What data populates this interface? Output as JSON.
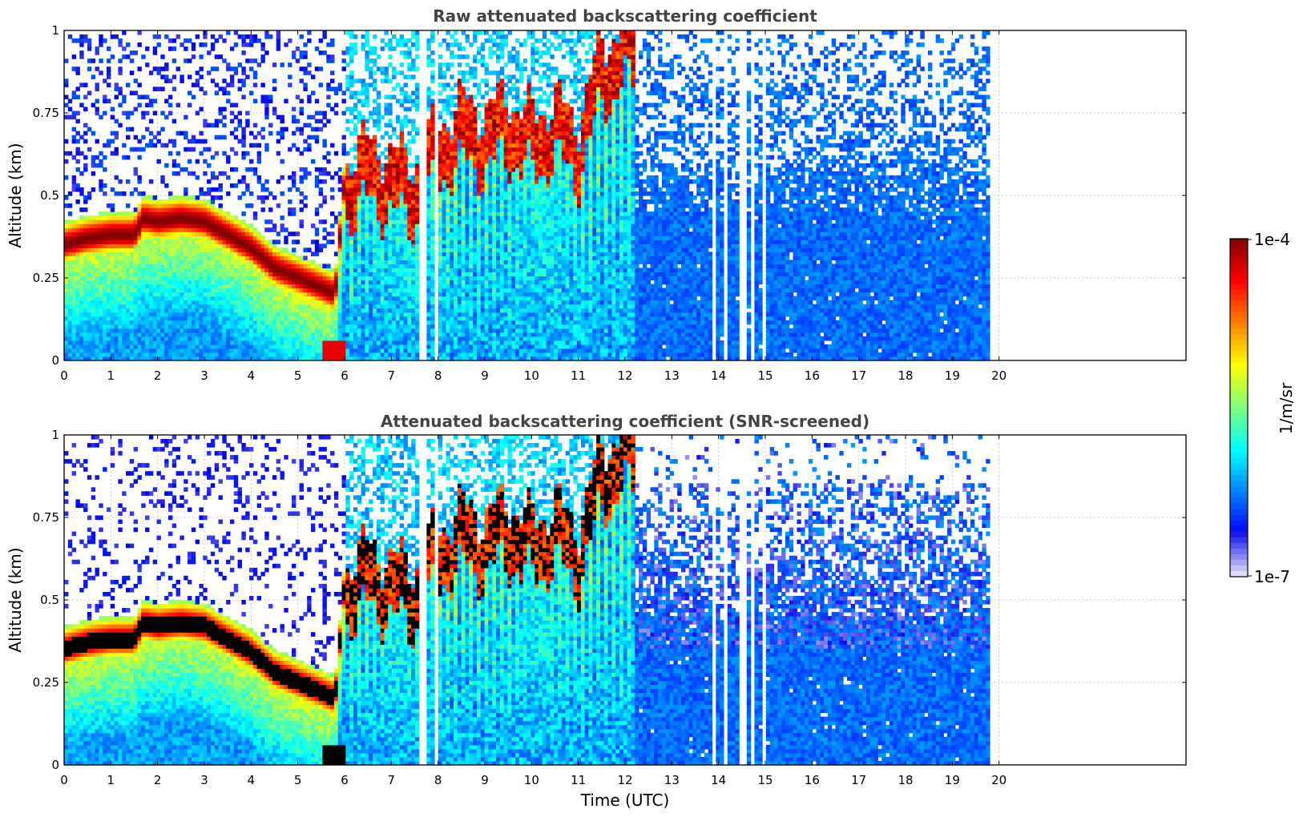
{
  "chart_data": [
    {
      "type": "heatmap",
      "title": "Raw attenuated backscattering coefficient",
      "xlabel": "",
      "ylabel": "Altitude (km)",
      "xlim": [
        0,
        24
      ],
      "ylim": [
        0,
        1
      ],
      "xticks": [
        "0",
        "1",
        "2",
        "3",
        "4",
        "5",
        "6",
        "7",
        "8",
        "9",
        "10",
        "11",
        "12",
        "13",
        "14",
        "15",
        "16",
        "17",
        "18",
        "19",
        "20"
      ],
      "yticks": [
        "0",
        "0.25",
        "0.5",
        "0.75",
        "1"
      ],
      "grid": true,
      "data_end_hour": 19.8,
      "layer_height_km": {
        "x": [
          0,
          0.5,
          1,
          1.5,
          1.7,
          2,
          2.5,
          3,
          3.5,
          4,
          4.5,
          5,
          5.5,
          5.8,
          6,
          6.5,
          7,
          7.5,
          8,
          8.5,
          9,
          9.5,
          10,
          10.5,
          11,
          11.5,
          12
        ],
        "y": [
          0.35,
          0.37,
          0.38,
          0.38,
          0.43,
          0.42,
          0.43,
          0.42,
          0.38,
          0.34,
          0.28,
          0.25,
          0.22,
          0.2,
          0.55,
          0.6,
          0.57,
          0.54,
          0.66,
          0.72,
          0.7,
          0.74,
          0.68,
          0.73,
          0.67,
          0.9,
          0.96
        ]
      }
    },
    {
      "type": "heatmap",
      "title": "Attenuated backscattering coefficient (SNR-screened)",
      "xlabel": "Time (UTC)",
      "ylabel": "Altitude (km)",
      "xlim": [
        0,
        24
      ],
      "ylim": [
        0,
        1
      ],
      "xticks": [
        "0",
        "1",
        "2",
        "3",
        "4",
        "5",
        "6",
        "7",
        "8",
        "9",
        "10",
        "11",
        "12",
        "13",
        "14",
        "15",
        "16",
        "17",
        "18",
        "19",
        "20"
      ],
      "yticks": [
        "0",
        "0.25",
        "0.5",
        "0.75",
        "1"
      ],
      "grid": true,
      "data_end_hour": 19.8
    }
  ],
  "colorbar": {
    "max_label": "1e-4",
    "min_label": "1e-7",
    "unit_label": "1/m/sr",
    "colormap": "jet",
    "saturated_color": "#000000"
  }
}
